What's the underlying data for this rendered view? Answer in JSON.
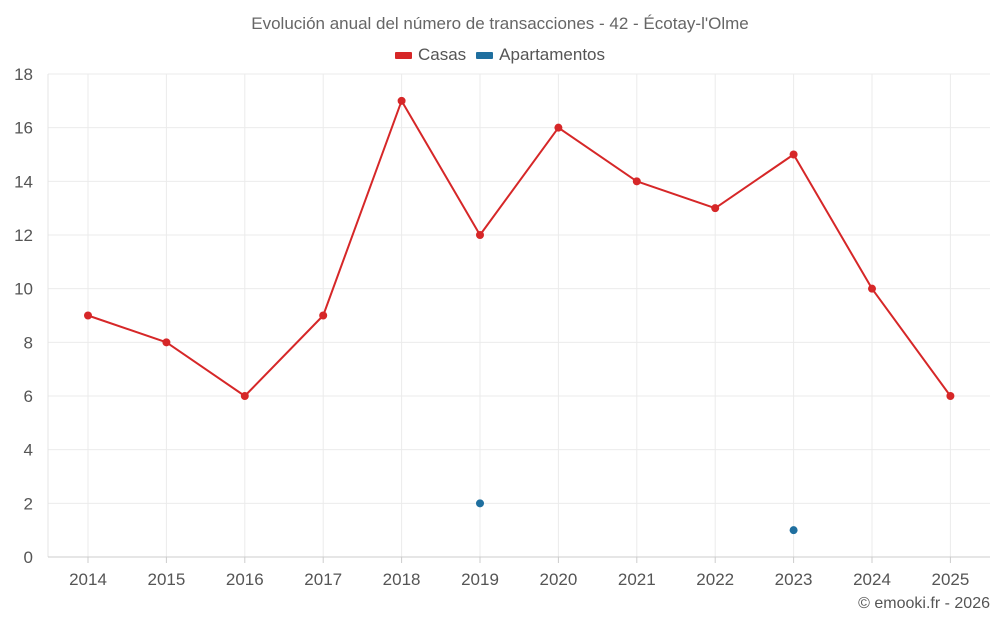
{
  "chart_data": {
    "type": "line",
    "title": "Evolución anual del número de transacciones - 42 - Écotay-l'Olme",
    "categories": [
      "2014",
      "2015",
      "2016",
      "2017",
      "2018",
      "2019",
      "2020",
      "2021",
      "2022",
      "2023",
      "2024",
      "2025"
    ],
    "series": [
      {
        "name": "Casas",
        "color": "#d62728",
        "values": [
          9,
          8,
          6,
          9,
          17,
          12,
          16,
          14,
          13,
          15,
          10,
          6
        ]
      },
      {
        "name": "Apartamentos",
        "color": "#1f6f9f",
        "values": [
          null,
          null,
          null,
          null,
          null,
          2,
          null,
          null,
          null,
          1,
          null,
          null
        ]
      }
    ],
    "ylim": [
      0,
      18
    ],
    "yticks": [
      0,
      2,
      4,
      6,
      8,
      10,
      12,
      14,
      16,
      18
    ],
    "grid": true,
    "legend_position": "top-center"
  },
  "credit": "© emooki.fr - 2026"
}
